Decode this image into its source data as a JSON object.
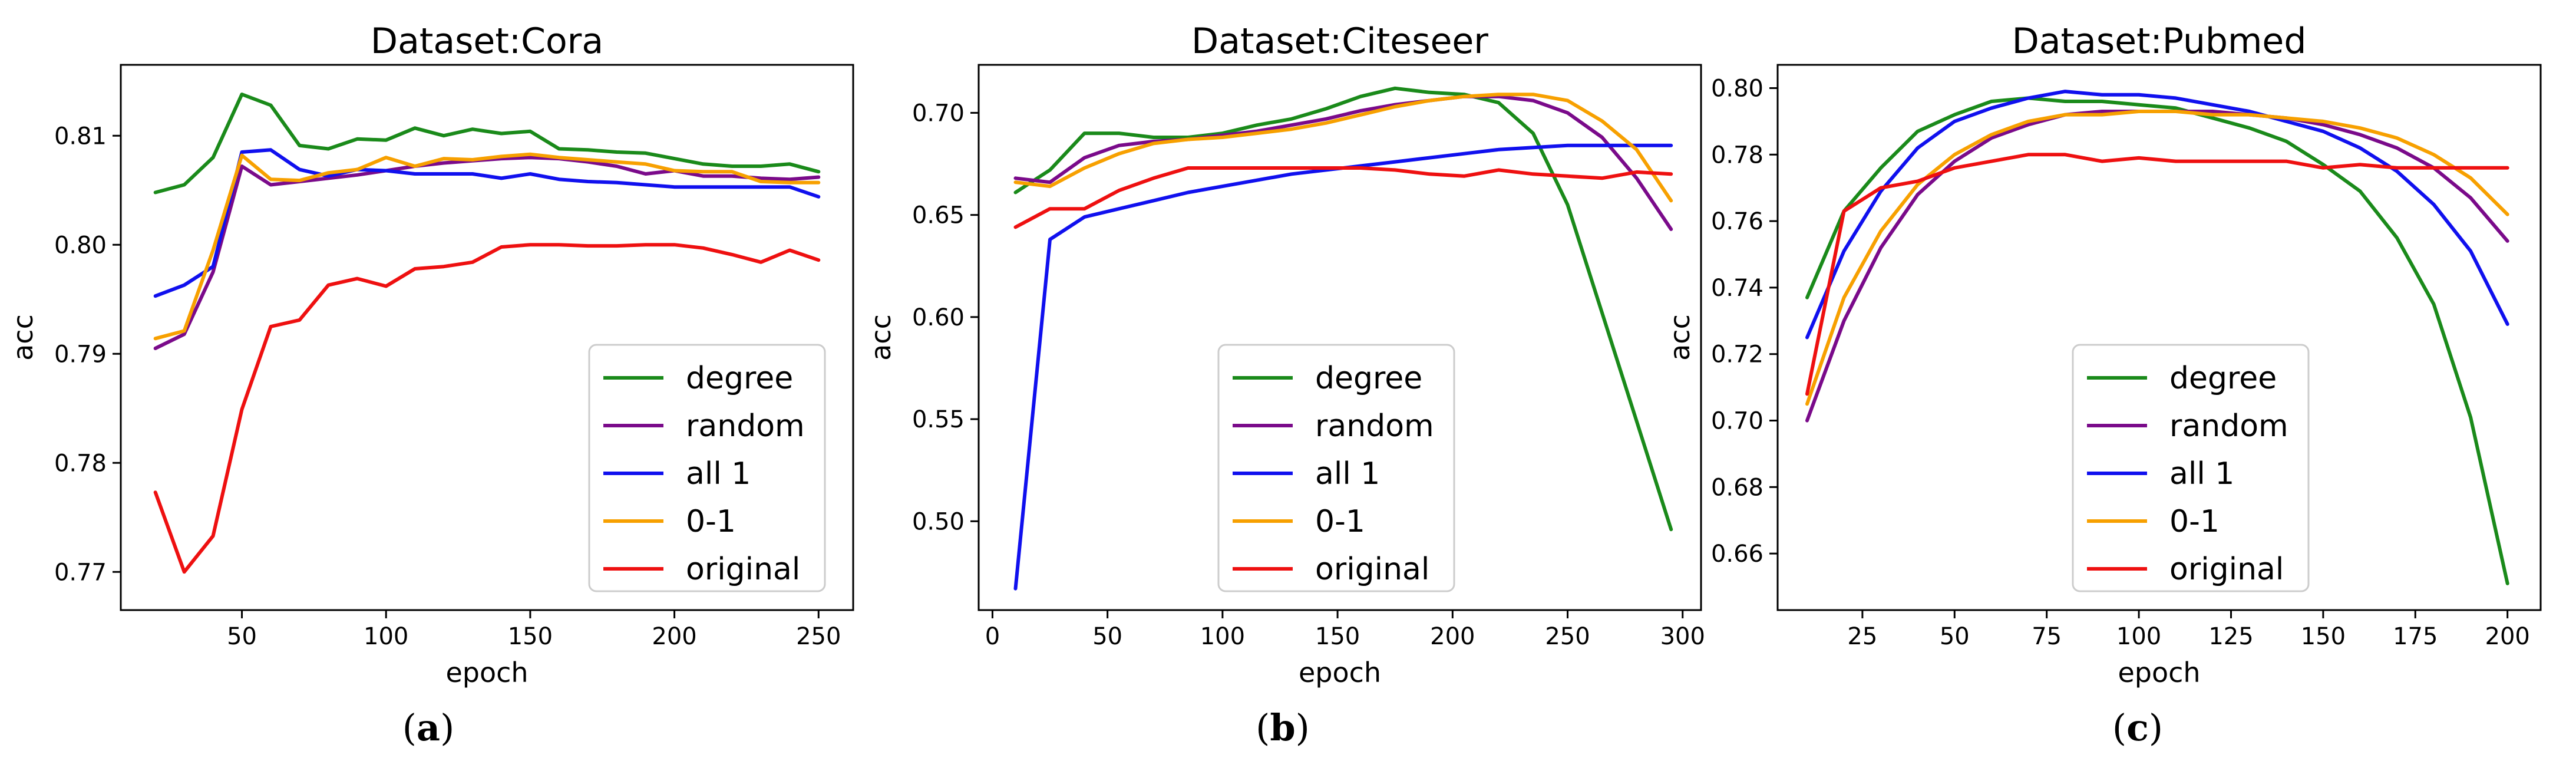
{
  "figure_labels": [
    "(a)",
    "(b)",
    "(c)"
  ],
  "legend_labels": [
    "degree",
    "random",
    "all 1",
    "0-1",
    "original"
  ],
  "colors": {
    "degree": "#1a8a1a",
    "random": "#7a0a8a",
    "all 1": "#1010ee",
    "0-1": "#f7a000",
    "original": "#ee1010"
  },
  "chart_data": [
    {
      "type": "line",
      "title": "Dataset:Cora",
      "xlabel": "epoch",
      "ylabel": "acc",
      "xlim": [
        8,
        262
      ],
      "ylim": [
        0.7665,
        0.8165
      ],
      "xticks": [
        50,
        100,
        150,
        200,
        250
      ],
      "yticks": [
        0.77,
        0.78,
        0.79,
        0.8,
        0.81
      ],
      "ytick_labels": [
        "0.77",
        "0.78",
        "0.79",
        "0.80",
        "0.81"
      ],
      "legend_position": "lower-right",
      "x": [
        20,
        30,
        40,
        50,
        60,
        70,
        80,
        90,
        100,
        110,
        120,
        130,
        140,
        150,
        160,
        170,
        180,
        190,
        200,
        210,
        220,
        230,
        240,
        250
      ],
      "series": [
        {
          "name": "degree",
          "values": [
            0.8048,
            0.8055,
            0.808,
            0.8138,
            0.8128,
            0.8091,
            0.8088,
            0.8097,
            0.8096,
            0.8107,
            0.81,
            0.8106,
            0.8102,
            0.8104,
            0.8088,
            0.8087,
            0.8085,
            0.8084,
            0.8079,
            0.8074,
            0.8072,
            0.8072,
            0.8074,
            0.8067
          ]
        },
        {
          "name": "random",
          "values": [
            0.7905,
            0.7918,
            0.7975,
            0.8072,
            0.8055,
            0.8058,
            0.8061,
            0.8064,
            0.8068,
            0.8072,
            0.8075,
            0.8077,
            0.8079,
            0.808,
            0.8079,
            0.8076,
            0.8072,
            0.8065,
            0.8068,
            0.8063,
            0.8063,
            0.8061,
            0.806,
            0.8062
          ]
        },
        {
          "name": "all 1",
          "values": [
            0.7953,
            0.7963,
            0.798,
            0.8085,
            0.8087,
            0.8069,
            0.8063,
            0.8069,
            0.8068,
            0.8065,
            0.8065,
            0.8065,
            0.8061,
            0.8065,
            0.806,
            0.8058,
            0.8057,
            0.8055,
            0.8053,
            0.8053,
            0.8053,
            0.8053,
            0.8053,
            0.8044
          ]
        },
        {
          "name": "0-1",
          "values": [
            0.7914,
            0.7921,
            0.7995,
            0.8082,
            0.806,
            0.8059,
            0.8066,
            0.8069,
            0.808,
            0.8072,
            0.8079,
            0.8078,
            0.8081,
            0.8083,
            0.808,
            0.8078,
            0.8076,
            0.8074,
            0.8068,
            0.8067,
            0.8067,
            0.8058,
            0.8057,
            0.8057
          ]
        },
        {
          "name": "original",
          "values": [
            0.7773,
            0.77,
            0.7733,
            0.7849,
            0.7925,
            0.7931,
            0.7963,
            0.7969,
            0.7962,
            0.7978,
            0.798,
            0.7984,
            0.7998,
            0.8,
            0.8,
            0.7999,
            0.7999,
            0.8,
            0.8,
            0.7997,
            0.7991,
            0.7984,
            0.7995,
            0.7986
          ]
        }
      ]
    },
    {
      "type": "line",
      "title": "Dataset:Citeseer",
      "xlabel": "epoch",
      "ylabel": "acc",
      "xlim": [
        -6,
        308
      ],
      "ylim": [
        0.4565,
        0.7235
      ],
      "xticks": [
        0,
        50,
        100,
        150,
        200,
        250,
        300
      ],
      "yticks": [
        0.5,
        0.55,
        0.6,
        0.65,
        0.7
      ],
      "ytick_labels": [
        "0.50",
        "0.55",
        "0.60",
        "0.65",
        "0.70"
      ],
      "legend_position": "lower-center",
      "x": [
        10,
        25,
        40,
        55,
        70,
        85,
        100,
        115,
        130,
        145,
        160,
        175,
        190,
        205,
        220,
        235,
        250,
        265,
        280,
        295
      ],
      "series": [
        {
          "name": "degree",
          "values": [
            0.661,
            0.672,
            0.69,
            0.69,
            0.688,
            0.688,
            0.69,
            0.694,
            0.697,
            0.702,
            0.708,
            0.712,
            0.71,
            0.709,
            0.705,
            0.69,
            0.655,
            0.602,
            0.549,
            0.496
          ]
        },
        {
          "name": "random",
          "values": [
            0.668,
            0.666,
            0.678,
            0.684,
            0.686,
            0.687,
            0.689,
            0.691,
            0.694,
            0.697,
            0.701,
            0.704,
            0.706,
            0.708,
            0.708,
            0.706,
            0.7,
            0.688,
            0.668,
            0.643
          ]
        },
        {
          "name": "all 1",
          "values": [
            0.467,
            0.638,
            0.649,
            0.653,
            0.657,
            0.661,
            0.664,
            0.667,
            0.67,
            0.672,
            0.674,
            0.676,
            0.678,
            0.68,
            0.682,
            0.683,
            0.684,
            0.684,
            0.684,
            0.684
          ]
        },
        {
          "name": "0-1",
          "values": [
            0.666,
            0.664,
            0.673,
            0.68,
            0.685,
            0.687,
            0.688,
            0.69,
            0.692,
            0.695,
            0.699,
            0.703,
            0.706,
            0.708,
            0.709,
            0.709,
            0.706,
            0.696,
            0.682,
            0.657
          ]
        },
        {
          "name": "original",
          "values": [
            0.644,
            0.653,
            0.653,
            0.662,
            0.668,
            0.673,
            0.673,
            0.673,
            0.673,
            0.673,
            0.673,
            0.672,
            0.67,
            0.669,
            0.672,
            0.67,
            0.669,
            0.668,
            0.671,
            0.67
          ]
        }
      ]
    },
    {
      "type": "line",
      "title": "Dataset:Pubmed",
      "xlabel": "epoch",
      "ylabel": "acc",
      "xlim": [
        2,
        209
      ],
      "ylim": [
        0.643,
        0.807
      ],
      "xticks": [
        25,
        50,
        75,
        100,
        125,
        150,
        175,
        200
      ],
      "yticks": [
        0.66,
        0.68,
        0.7,
        0.72,
        0.74,
        0.76,
        0.78,
        0.8
      ],
      "ytick_labels": [
        "0.66",
        "0.68",
        "0.70",
        "0.72",
        "0.74",
        "0.76",
        "0.78",
        "0.80"
      ],
      "legend_position": "lower-center",
      "x": [
        10,
        20,
        30,
        40,
        50,
        60,
        70,
        80,
        90,
        100,
        110,
        120,
        130,
        140,
        150,
        160,
        170,
        180,
        190,
        200
      ],
      "series": [
        {
          "name": "degree",
          "values": [
            0.737,
            0.763,
            0.776,
            0.787,
            0.792,
            0.796,
            0.797,
            0.796,
            0.796,
            0.795,
            0.794,
            0.791,
            0.788,
            0.784,
            0.777,
            0.769,
            0.755,
            0.735,
            0.701,
            0.651
          ]
        },
        {
          "name": "random",
          "values": [
            0.7,
            0.73,
            0.752,
            0.768,
            0.778,
            0.785,
            0.789,
            0.792,
            0.793,
            0.793,
            0.793,
            0.793,
            0.792,
            0.791,
            0.789,
            0.786,
            0.782,
            0.776,
            0.767,
            0.754
          ]
        },
        {
          "name": "all 1",
          "values": [
            0.725,
            0.751,
            0.769,
            0.782,
            0.79,
            0.794,
            0.797,
            0.799,
            0.798,
            0.798,
            0.797,
            0.795,
            0.793,
            0.79,
            0.787,
            0.782,
            0.775,
            0.765,
            0.751,
            0.729
          ]
        },
        {
          "name": "0-1",
          "values": [
            0.705,
            0.737,
            0.757,
            0.771,
            0.78,
            0.786,
            0.79,
            0.792,
            0.792,
            0.793,
            0.793,
            0.792,
            0.792,
            0.791,
            0.79,
            0.788,
            0.785,
            0.78,
            0.773,
            0.762
          ]
        },
        {
          "name": "original",
          "values": [
            0.708,
            0.763,
            0.77,
            0.772,
            0.776,
            0.778,
            0.78,
            0.78,
            0.778,
            0.779,
            0.778,
            0.778,
            0.778,
            0.778,
            0.776,
            0.777,
            0.776,
            0.776,
            0.776,
            0.776
          ]
        }
      ]
    }
  ]
}
